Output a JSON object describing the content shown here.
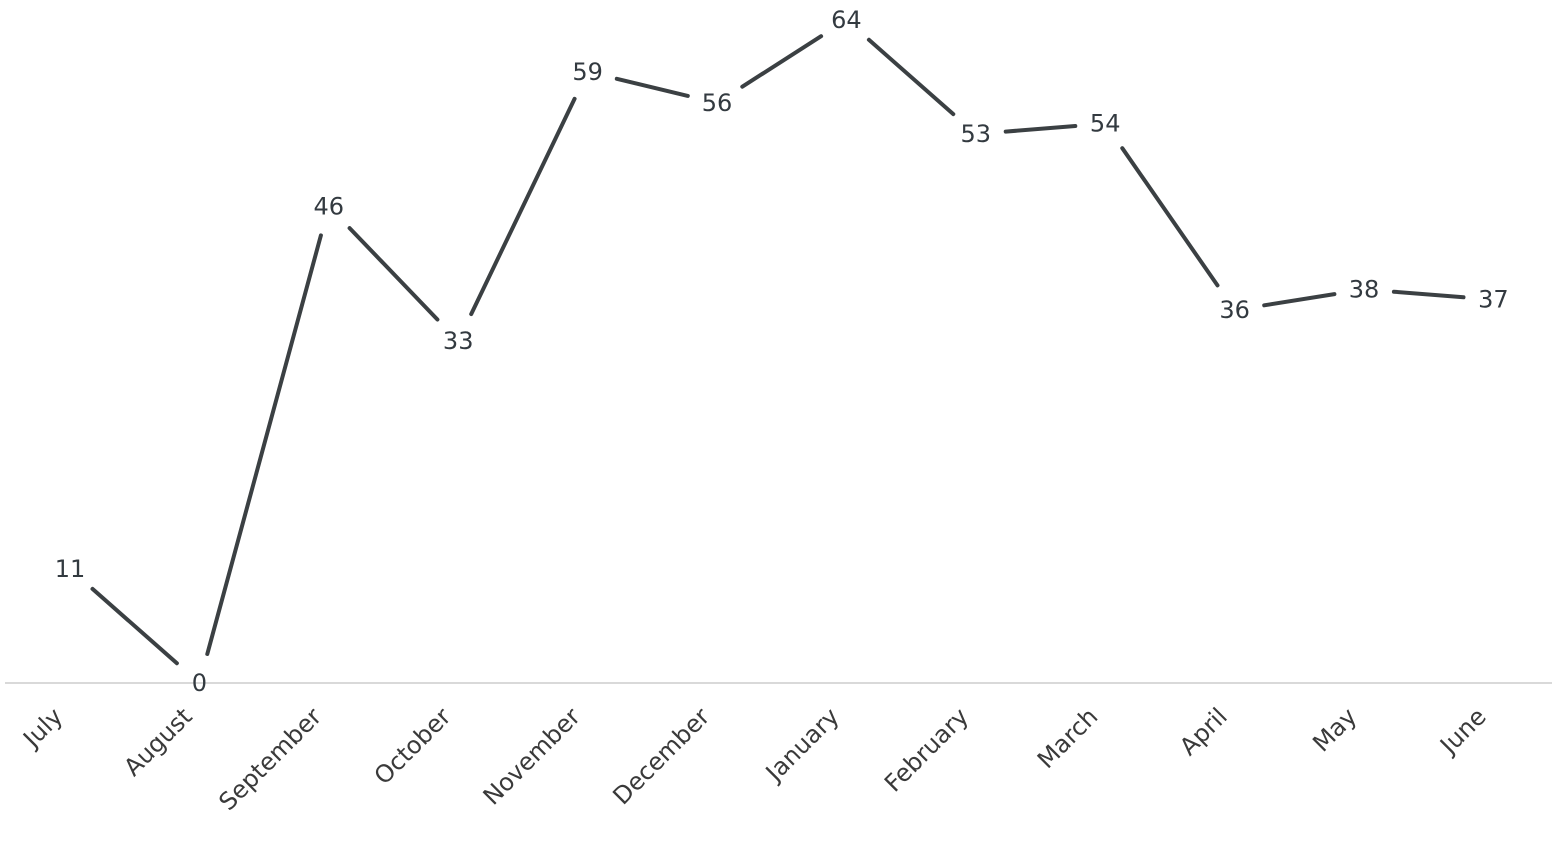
{
  "chart_data": {
    "type": "line",
    "title": "",
    "xlabel": "",
    "ylabel": "",
    "categories": [
      "July",
      "August",
      "September",
      "October",
      "November",
      "December",
      "January",
      "February",
      "March",
      "April",
      "May",
      "June"
    ],
    "series": [
      {
        "values": [
          11,
          0,
          46,
          33,
          59,
          56,
          64,
          53,
          54,
          36,
          38,
          37
        ]
      }
    ],
    "ylim": [
      0,
      64
    ],
    "data_labels": true,
    "grid": false,
    "legend": "none",
    "colors": {
      "line": "#3b4043",
      "baseline": "#d9d9d9",
      "text": "#333a40"
    }
  }
}
